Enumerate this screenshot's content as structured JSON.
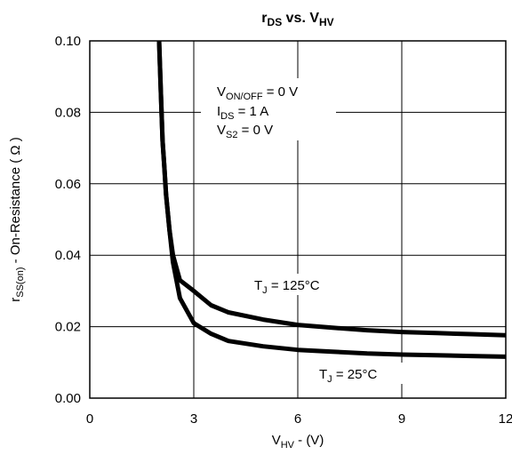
{
  "chart_data": {
    "type": "line",
    "title": {
      "main": "r",
      "sub": "DS",
      "mid": " vs. V",
      "sub2": "HV"
    },
    "xlabel": {
      "main": "V",
      "sub": "HV",
      "rest": " - (V)"
    },
    "ylabel": {
      "main": "r",
      "sub": "SS(on)",
      "rest": " -  On-Resistance ( Ω )"
    },
    "xlim": [
      0,
      12
    ],
    "ylim": [
      0,
      0.1
    ],
    "xticks": [
      "0",
      "3",
      "6",
      "9",
      "12"
    ],
    "yticks": [
      "0.00",
      "0.02",
      "0.04",
      "0.06",
      "0.08",
      "0.10"
    ],
    "grid": true,
    "conditions": [
      {
        "main": "V",
        "sub": "ON/OFF",
        "rest": " = 0 V"
      },
      {
        "main": "I",
        "sub": "DS",
        "rest": " = 1 A"
      },
      {
        "main": "V",
        "sub": "S2",
        "rest": " = 0 V"
      }
    ],
    "series": [
      {
        "name": {
          "main": "T",
          "sub": "J",
          "rest": " = 125°C"
        },
        "x": [
          2.0,
          2.05,
          2.1,
          2.15,
          2.2,
          2.3,
          2.4,
          2.6,
          3.0,
          3.5,
          4.0,
          5.0,
          6.0,
          7.0,
          8.0,
          9.0,
          10.0,
          11.0,
          12.0
        ],
        "y": [
          0.1,
          0.086,
          0.072,
          0.065,
          0.057,
          0.047,
          0.04,
          0.033,
          0.03,
          0.026,
          0.024,
          0.022,
          0.0205,
          0.0197,
          0.019,
          0.0185,
          0.0182,
          0.0179,
          0.0176
        ]
      },
      {
        "name": {
          "main": "T",
          "sub": "J",
          "rest": " = 25°C"
        },
        "x": [
          2.0,
          2.05,
          2.1,
          2.15,
          2.2,
          2.3,
          2.4,
          2.6,
          3.0,
          3.5,
          4.0,
          5.0,
          6.0,
          7.0,
          8.0,
          9.0,
          10.0,
          11.0,
          12.0
        ],
        "y": [
          0.1,
          0.086,
          0.072,
          0.065,
          0.057,
          0.047,
          0.038,
          0.028,
          0.021,
          0.018,
          0.016,
          0.0145,
          0.0135,
          0.013,
          0.0125,
          0.0122,
          0.012,
          0.0118,
          0.0116
        ]
      }
    ]
  }
}
